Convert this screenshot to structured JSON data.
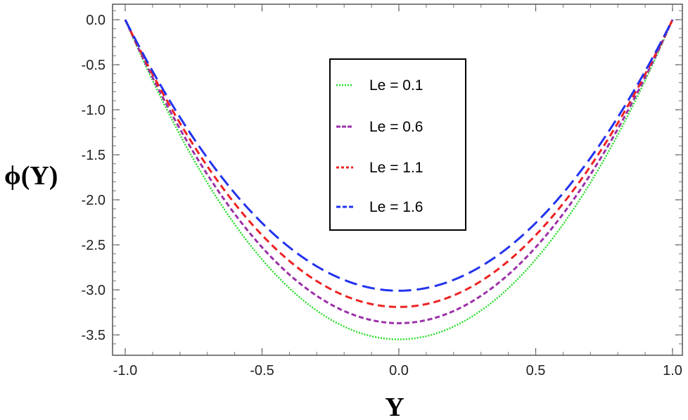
{
  "chart_data": {
    "type": "line",
    "xlabel": "Y",
    "ylabel": "ϕ(Y)",
    "xlim": [
      -1.0,
      1.0
    ],
    "ylim": [
      -3.62,
      0.18
    ],
    "x_ticks": [
      "-1.0",
      "-0.5",
      "0.0",
      "0.5",
      "1.0"
    ],
    "y_ticks": [
      "0.0",
      "-0.5",
      "-1.0",
      "-1.5",
      "-2.0",
      "-2.5",
      "-3.0",
      "-3.5"
    ],
    "x_tick_values": [
      -1.0,
      -0.5,
      0.0,
      0.5,
      1.0
    ],
    "y_tick_values": [
      0.0,
      -0.5,
      -1.0,
      -1.5,
      -2.0,
      -2.5,
      -3.0,
      -3.5
    ],
    "legend_position": "top-center",
    "x": [
      -1.0,
      -0.75,
      -0.5,
      -0.25,
      0.0,
      0.25,
      0.5,
      0.75,
      1.0
    ],
    "series": [
      {
        "name": "Le = 0.1",
        "color": "#22dd22",
        "dash": "dotted",
        "values": [
          0.0,
          -1.55,
          -2.65,
          -3.32,
          -3.55,
          -3.32,
          -2.65,
          -1.55,
          0.0
        ]
      },
      {
        "name": "Le = 0.6",
        "color": "#9b30a8",
        "dash": "dashdot",
        "values": [
          0.0,
          -1.45,
          -2.52,
          -3.15,
          -3.37,
          -3.15,
          -2.52,
          -1.45,
          0.0
        ]
      },
      {
        "name": "Le = 1.1",
        "color": "#ee2222",
        "dash": "dashed",
        "values": [
          0.0,
          -1.38,
          -2.38,
          -2.98,
          -3.19,
          -2.98,
          -2.38,
          -1.38,
          0.0
        ]
      },
      {
        "name": "Le = 1.6",
        "color": "#2233ee",
        "dash": "longdash",
        "values": [
          0.0,
          -1.3,
          -2.24,
          -2.8,
          -3.01,
          -2.8,
          -2.24,
          -1.3,
          0.0
        ]
      }
    ]
  }
}
